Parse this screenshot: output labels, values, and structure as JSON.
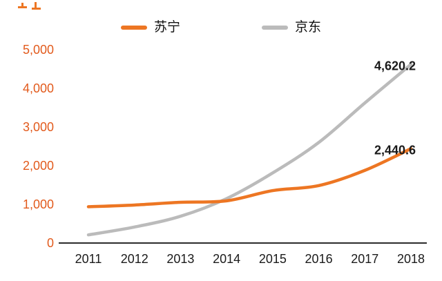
{
  "chart_data": {
    "type": "line",
    "title": "",
    "categories": [
      "2011",
      "2012",
      "2013",
      "2014",
      "2015",
      "2016",
      "2017",
      "2018"
    ],
    "series": [
      {
        "name": "苏宁",
        "color": "#ED7623",
        "values": [
          939,
          983,
          1054,
          1092,
          1356,
          1486,
          1879,
          2440.6
        ],
        "end_label": "2,440.6"
      },
      {
        "name": "京东",
        "color": "#BBBBBB",
        "values": [
          211,
          414,
          693,
          1150,
          1813,
          2602,
          3623,
          4620.2
        ],
        "end_label": "4,620.2"
      }
    ],
    "ylim": [
      0,
      5000
    ],
    "ytick_interval": 1000,
    "ytick_labels": [
      "0",
      "1,000",
      "2,000",
      "3,000",
      "4,000",
      "5,000"
    ],
    "xlabel": "",
    "ylabel": "",
    "grid": false,
    "legend_position": "top",
    "axis_label_color": "#E25A1C",
    "xtick_color": "#1A1A1A",
    "value_label_color": "#1A1A1A",
    "axis_line_color": "#2B2B2B"
  },
  "legend": {
    "items": [
      {
        "label": "苏宁"
      },
      {
        "label": "京东"
      }
    ]
  }
}
